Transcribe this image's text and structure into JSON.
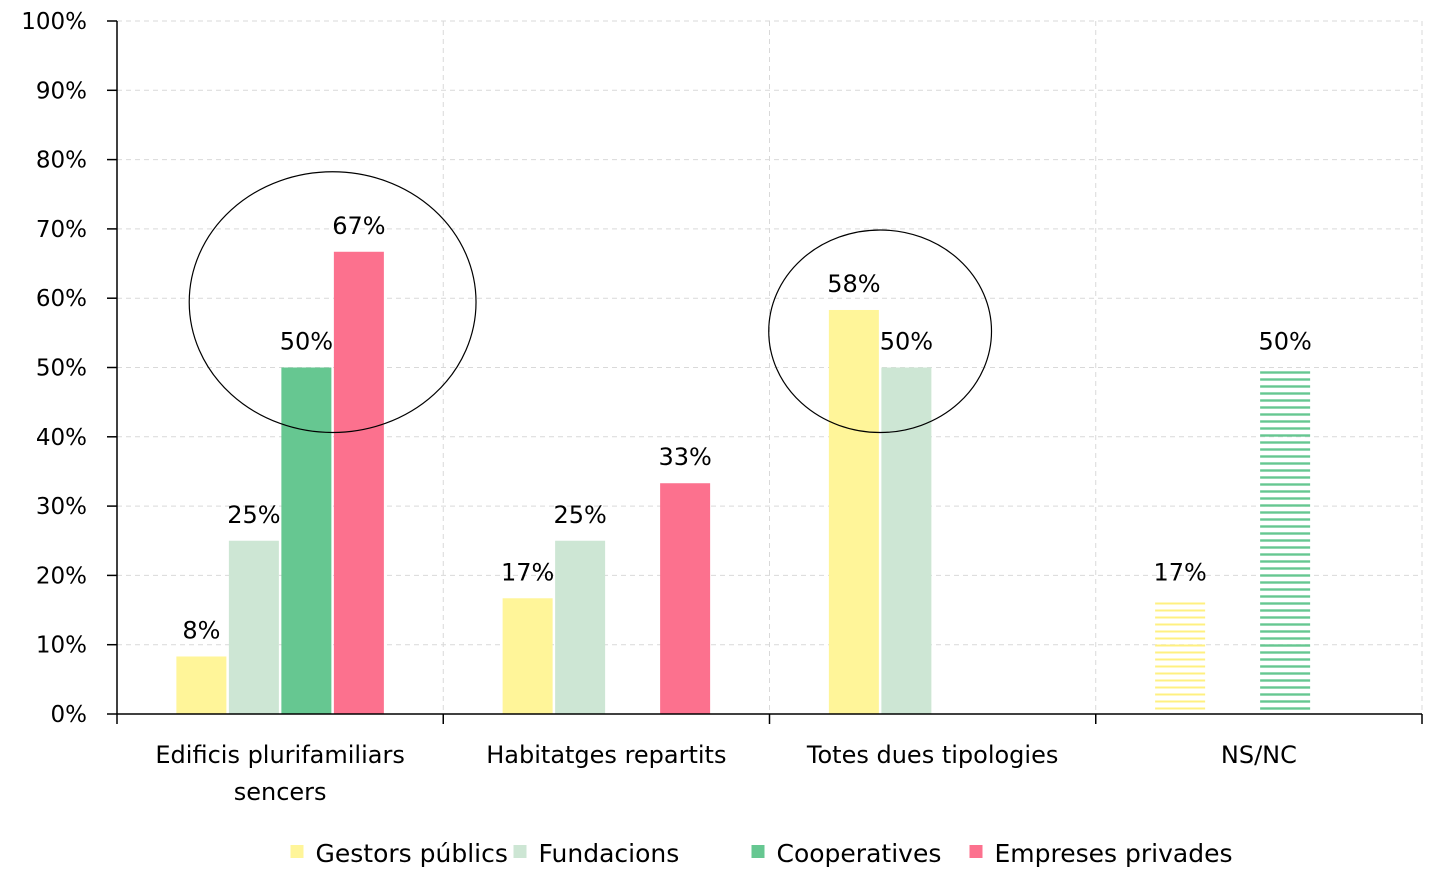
{
  "chart_data": {
    "type": "bar",
    "categories": [
      [
        "Edificis plurifamiliars",
        "sencers"
      ],
      [
        "Habitatges repartits"
      ],
      [
        "Totes dues tipologies"
      ],
      [
        "NS/NC"
      ]
    ],
    "series": [
      {
        "name": "Gestors públics",
        "color": "#FFF599",
        "values": [
          8.3,
          16.7,
          58.3,
          16.7
        ],
        "labels": [
          "8%",
          "17%",
          "58%",
          "17%"
        ]
      },
      {
        "name": "Fundacions",
        "color": "#CDE6D4",
        "values": [
          25,
          25,
          50,
          null
        ],
        "labels": [
          "25%",
          "25%",
          "50%",
          ""
        ]
      },
      {
        "name": "Cooperatives",
        "color": "#66C791",
        "values": [
          50,
          null,
          null,
          50
        ],
        "labels": [
          "50%",
          "",
          "",
          "50%"
        ]
      },
      {
        "name": "Empreses privades",
        "color": "#FC718E",
        "values": [
          66.7,
          33.3,
          null,
          null
        ],
        "labels": [
          "67%",
          "33%",
          "",
          ""
        ]
      }
    ],
    "hatched_category": "NS/NC",
    "yticks": [
      "0%",
      "10%",
      "20%",
      "30%",
      "40%",
      "50%",
      "60%",
      "70%",
      "80%",
      "90%",
      "100%"
    ],
    "ylim": [
      0,
      100
    ],
    "grid": true,
    "legend_position": "bottom",
    "highlight_circles": [
      {
        "category": "Edificis plurifamiliars sencers",
        "series": [
          "Cooperatives",
          "Empreses privades"
        ]
      },
      {
        "category": "Totes dues tipologies",
        "series": [
          "Gestors públics",
          "Fundacions"
        ]
      }
    ]
  }
}
